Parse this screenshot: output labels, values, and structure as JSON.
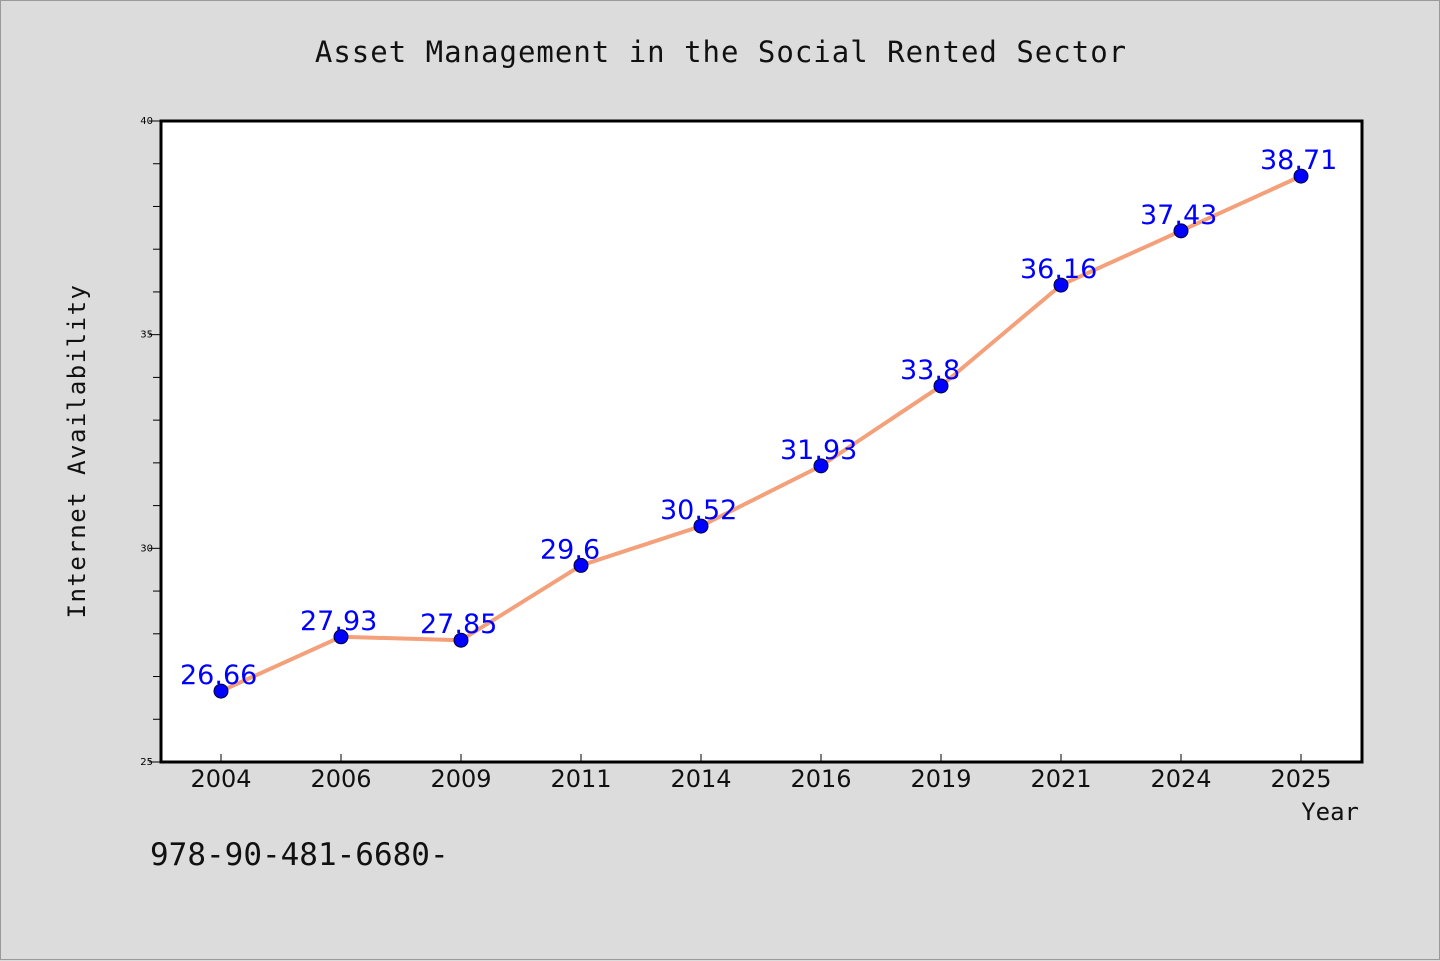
{
  "colors": {
    "background": "#dcdcdc",
    "plot_background": "#ffffff",
    "line": "#f4a07a",
    "marker": "#0000ff",
    "data_label": "#0000ff",
    "text": "#111111"
  },
  "footnote": "978-90-481-6680-",
  "chart_data": {
    "type": "line",
    "title": "Asset Management in the Social Rented Sector",
    "xlabel": "Year",
    "ylabel": "Internet Availability",
    "categories": [
      "2004",
      "2006",
      "2009",
      "2011",
      "2014",
      "2016",
      "2019",
      "2021",
      "2024",
      "2025"
    ],
    "values": [
      26.66,
      27.93,
      27.85,
      29.6,
      30.52,
      31.93,
      33.8,
      36.16,
      37.43,
      38.71
    ],
    "data_labels": [
      "26.66",
      "27.93",
      "27.85",
      "29.6",
      "30.52",
      "31.93",
      "33.8",
      "36.16",
      "37.43",
      "38.71"
    ],
    "ylim": [
      25,
      40
    ],
    "yticks": [
      25,
      30,
      35,
      40
    ],
    "grid": false,
    "legend": "none"
  }
}
